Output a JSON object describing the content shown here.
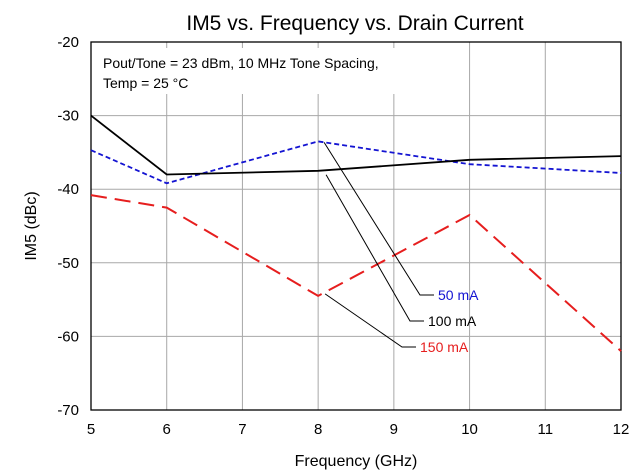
{
  "chart_data": {
    "type": "line",
    "title": "IM5 vs. Frequency vs. Drain Current",
    "xlabel": "Frequency (GHz)",
    "ylabel": "IM5 (dBc)",
    "xlim": [
      5,
      12
    ],
    "ylim": [
      -70,
      -20
    ],
    "xticks": [
      5,
      6,
      7,
      8,
      9,
      10,
      11,
      12
    ],
    "yticks": [
      -70,
      -60,
      -50,
      -40,
      -30,
      -20
    ],
    "grid": true,
    "annotation_lines": [
      "Pout/Tone = 23 dBm, 10 MHz Tone Spacing,",
      "Temp = 25 °C"
    ],
    "series": [
      {
        "name": "50 mA",
        "color": "#1414d2",
        "style": "dotted",
        "x": [
          5,
          6,
          8,
          10,
          12
        ],
        "y": [
          -34.7,
          -39.2,
          -33.5,
          -36.6,
          -37.8
        ]
      },
      {
        "name": "100 mA",
        "color": "#000000",
        "style": "solid",
        "x": [
          5,
          6,
          8,
          10,
          12
        ],
        "y": [
          -30.0,
          -38.0,
          -37.5,
          -36.0,
          -35.5
        ]
      },
      {
        "name": "150 mA",
        "color": "#e61e1e",
        "style": "dashed",
        "x": [
          5,
          6,
          8,
          10,
          12
        ],
        "y": [
          -40.8,
          -42.5,
          -54.5,
          -43.5,
          -62.0
        ]
      }
    ]
  }
}
